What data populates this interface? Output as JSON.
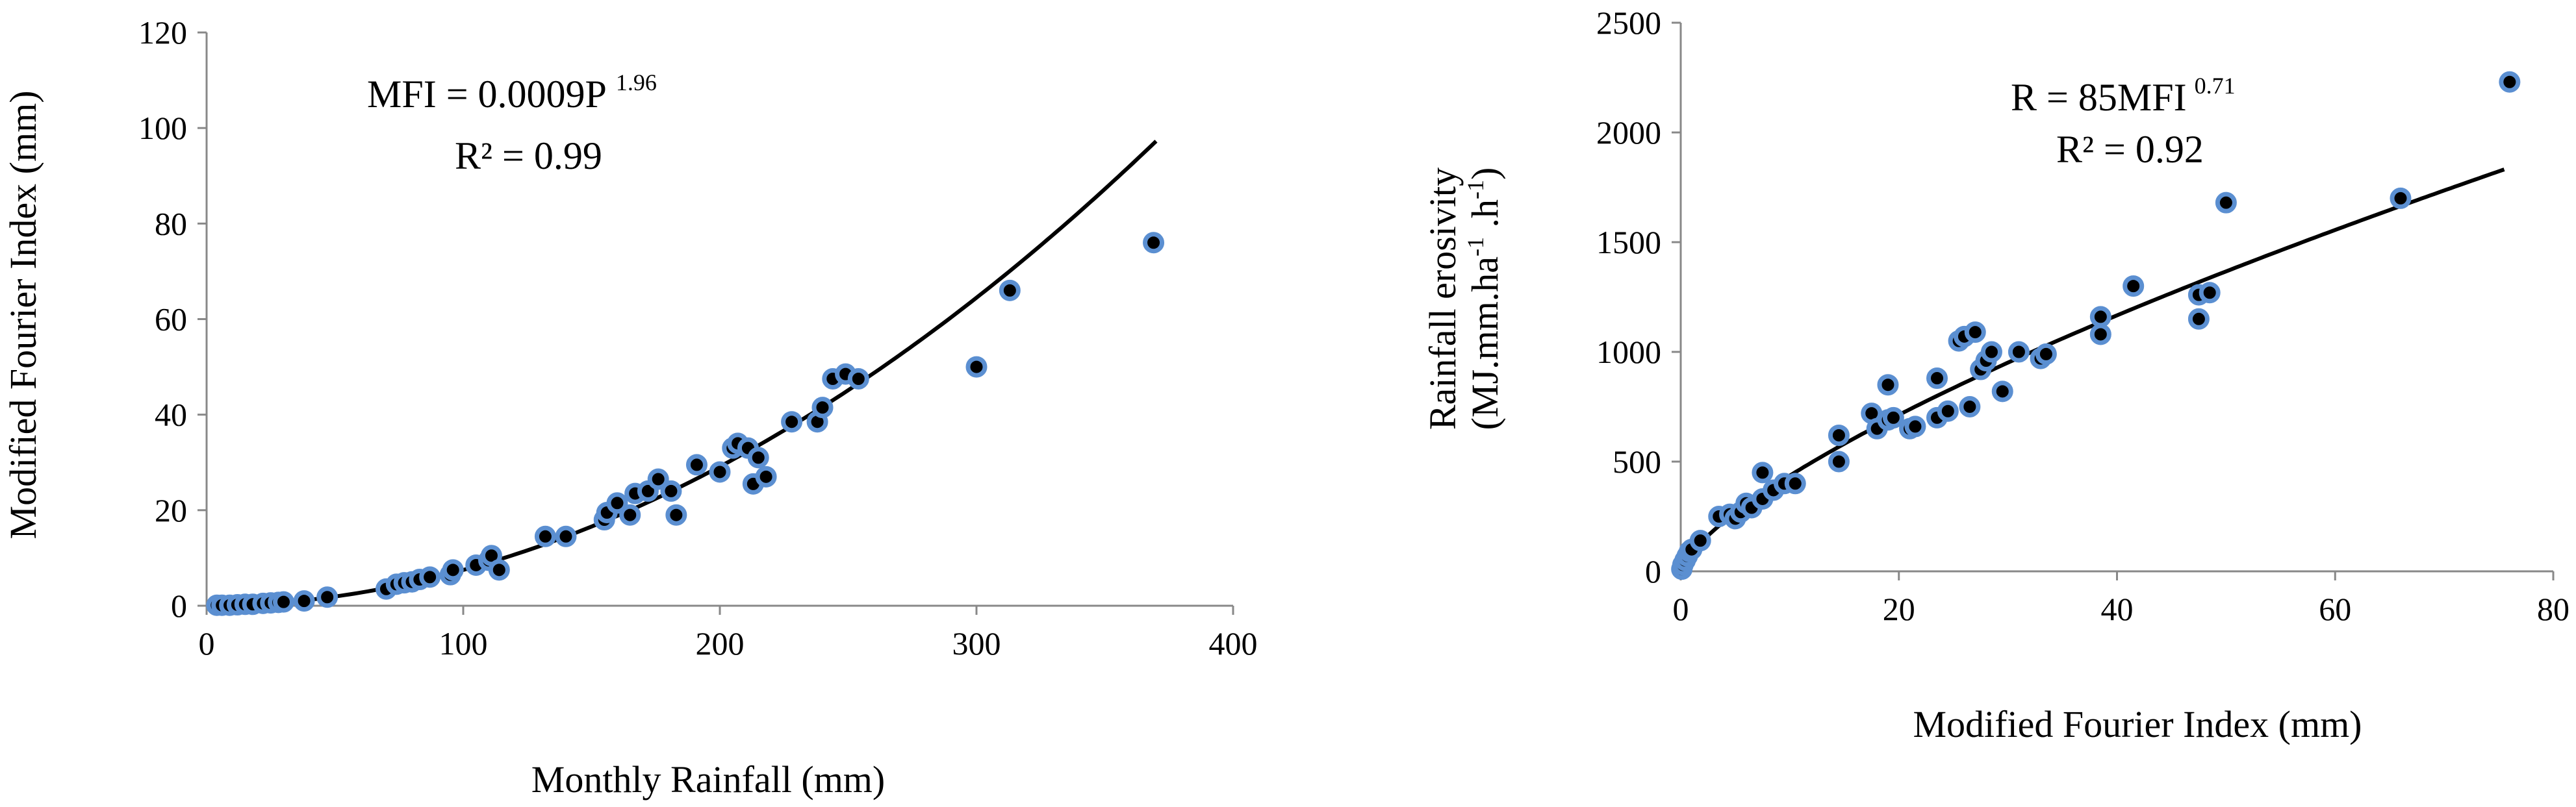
{
  "chart_data": [
    {
      "type": "scatter",
      "xlabel": "Monthly Rainfall  (mm)",
      "ylabel": "Modified Fourier Index (mm)",
      "xlim": [
        0,
        400
      ],
      "ylim": [
        0,
        120
      ],
      "x_ticks": [
        "0",
        "100",
        "200",
        "300",
        "400"
      ],
      "y_ticks": [
        "0",
        "20",
        "40",
        "60",
        "80",
        "100",
        "120"
      ],
      "equation": {
        "base": "MFI = 0.0009P",
        "exponent": "1.96"
      },
      "r2": "R² = 0.99",
      "fit": {
        "a": 0.0009,
        "b": 1.96,
        "x_range": [
          0,
          370
        ]
      },
      "marker": {
        "fill": "#000000",
        "edge": "#5b8fd1"
      },
      "fit_color": "#000000",
      "points": [
        [
          4,
          0.1
        ],
        [
          6,
          0.1
        ],
        [
          9,
          0.1
        ],
        [
          12,
          0.2
        ],
        [
          15,
          0.3
        ],
        [
          18,
          0.3
        ],
        [
          22,
          0.5
        ],
        [
          25,
          0.6
        ],
        [
          28,
          0.7
        ],
        [
          30,
          0.8
        ],
        [
          38,
          1.0
        ],
        [
          47,
          1.8
        ],
        [
          70,
          3.5
        ],
        [
          74,
          4.5
        ],
        [
          77,
          4.8
        ],
        [
          80,
          5.0
        ],
        [
          83,
          5.5
        ],
        [
          87,
          6.0
        ],
        [
          95,
          6.5
        ],
        [
          96,
          7.5
        ],
        [
          105,
          8.5
        ],
        [
          110,
          9.5
        ],
        [
          111,
          10.5
        ],
        [
          114,
          7.5
        ],
        [
          132,
          14.5
        ],
        [
          140,
          14.5
        ],
        [
          155,
          18.0
        ],
        [
          156,
          19.5
        ],
        [
          160,
          21.5
        ],
        [
          165,
          19.0
        ],
        [
          167,
          23.5
        ],
        [
          172,
          24.0
        ],
        [
          176,
          26.5
        ],
        [
          181,
          24.0
        ],
        [
          183,
          19.0
        ],
        [
          191,
          29.5
        ],
        [
          200,
          28.0
        ],
        [
          205,
          33.0
        ],
        [
          207,
          34.0
        ],
        [
          211,
          33.0
        ],
        [
          213,
          25.5
        ],
        [
          215,
          31.0
        ],
        [
          218,
          27.0
        ],
        [
          228,
          38.5
        ],
        [
          238,
          38.5
        ],
        [
          240,
          41.5
        ],
        [
          244,
          47.5
        ],
        [
          249,
          48.5
        ],
        [
          254,
          47.5
        ],
        [
          300,
          50.0
        ],
        [
          313,
          66.0
        ],
        [
          369,
          76.0
        ]
      ]
    },
    {
      "type": "scatter",
      "xlabel": "Modified Fourier Index (mm)",
      "ylabel": "Rainfall erosivity",
      "ylabel_unit": {
        "base1": "(MJ.mm.ha",
        "exp1": "-1",
        "mid": " .h",
        "exp2": "-1",
        "end": ")"
      },
      "xlim": [
        0,
        80
      ],
      "ylim": [
        0,
        2500
      ],
      "x_ticks": [
        "0",
        "20",
        "40",
        "60",
        "80"
      ],
      "y_ticks": [
        "0",
        "500",
        "1000",
        "1500",
        "2000",
        "2500"
      ],
      "equation": {
        "base": "R = 85MFI",
        "exponent": "0.71"
      },
      "r2": "R² = 0.92",
      "fit": {
        "a": 85,
        "b": 0.71,
        "x_range": [
          0,
          75.5
        ]
      },
      "marker": {
        "fill": "#000000",
        "edge": "#5b8fd1"
      },
      "fit_color": "#000000",
      "points": [
        [
          0.1,
          10
        ],
        [
          0.2,
          30
        ],
        [
          0.4,
          50
        ],
        [
          0.6,
          70
        ],
        [
          0.8,
          90
        ],
        [
          1.0,
          100
        ],
        [
          1.8,
          140
        ],
        [
          3.5,
          250
        ],
        [
          4.5,
          260
        ],
        [
          5.0,
          240
        ],
        [
          5.5,
          270
        ],
        [
          6.0,
          310
        ],
        [
          6.5,
          290
        ],
        [
          7.5,
          330
        ],
        [
          7.5,
          450
        ],
        [
          8.5,
          370
        ],
        [
          9.5,
          400
        ],
        [
          10.5,
          400
        ],
        [
          14.5,
          620
        ],
        [
          14.5,
          500
        ],
        [
          17.5,
          720
        ],
        [
          18.0,
          650
        ],
        [
          19.0,
          850
        ],
        [
          19.0,
          690
        ],
        [
          19.5,
          700
        ],
        [
          21.0,
          650
        ],
        [
          21.5,
          660
        ],
        [
          23.5,
          700
        ],
        [
          23.5,
          880
        ],
        [
          24.5,
          730
        ],
        [
          25.5,
          1050
        ],
        [
          26.0,
          1070
        ],
        [
          26.5,
          750
        ],
        [
          27.0,
          1090
        ],
        [
          27.5,
          920
        ],
        [
          28.0,
          960
        ],
        [
          28.5,
          1000
        ],
        [
          29.5,
          820
        ],
        [
          31.0,
          1000
        ],
        [
          33.0,
          970
        ],
        [
          33.5,
          990
        ],
        [
          38.5,
          1080
        ],
        [
          38.5,
          1160
        ],
        [
          41.5,
          1300
        ],
        [
          47.5,
          1150
        ],
        [
          47.5,
          1260
        ],
        [
          48.5,
          1270
        ],
        [
          50.0,
          1680
        ],
        [
          66.0,
          1700
        ],
        [
          76.0,
          2230
        ]
      ]
    }
  ]
}
